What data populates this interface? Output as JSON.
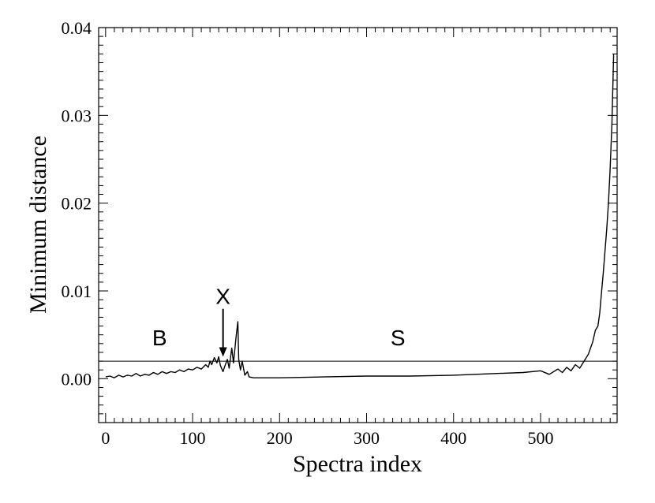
{
  "chart_data": {
    "type": "line",
    "title": "",
    "xlabel": "Spectra index",
    "ylabel": "Minimum distance",
    "xlim": [
      -8,
      588
    ],
    "ylim": [
      -0.005,
      0.04
    ],
    "xticks": [
      0,
      100,
      200,
      300,
      400,
      500
    ],
    "xtick_labels": [
      "0",
      "100",
      "200",
      "300",
      "400",
      "500"
    ],
    "yticks": [
      0.0,
      0.01,
      0.02,
      0.03,
      0.04
    ],
    "ytick_labels": [
      "0.00",
      "0.01",
      "0.02",
      "0.03",
      "0.04"
    ],
    "grid": false,
    "legend": "none",
    "series": [
      {
        "x": [
          0,
          5,
          10,
          15,
          20,
          25,
          30,
          35,
          40,
          45,
          50,
          55,
          60,
          65,
          70,
          75,
          80,
          85,
          90,
          95,
          100,
          105,
          110,
          115,
          118,
          120,
          122,
          125,
          128,
          130,
          132,
          135,
          137,
          140,
          142,
          145,
          147,
          150,
          152,
          153,
          155,
          157,
          160,
          163,
          165,
          170,
          180,
          200,
          250,
          300,
          350,
          400,
          450,
          480,
          500,
          510,
          520,
          525,
          530,
          535,
          540,
          545,
          550,
          555,
          560,
          563,
          566,
          568,
          570,
          572,
          574,
          576,
          578,
          580,
          582,
          583,
          584
        ],
        "y": [
          0.0002,
          0.0003,
          0.0001,
          0.0004,
          0.0002,
          0.0004,
          0.0003,
          0.0006,
          0.0003,
          0.0005,
          0.0004,
          0.0007,
          0.0005,
          0.0008,
          0.0006,
          0.0008,
          0.0007,
          0.001,
          0.0008,
          0.0011,
          0.001,
          0.0013,
          0.0011,
          0.0016,
          0.0013,
          0.002,
          0.0016,
          0.0024,
          0.0018,
          0.0025,
          0.0015,
          0.0008,
          0.0014,
          0.0022,
          0.0012,
          0.0035,
          0.0018,
          0.0048,
          0.0065,
          0.0022,
          0.001,
          0.002,
          0.0004,
          0.0008,
          0.0002,
          0.0001,
          0.0001,
          0.0001,
          0.0002,
          0.0003,
          0.0003,
          0.0004,
          0.0006,
          0.0007,
          0.0009,
          0.0005,
          0.0011,
          0.0007,
          0.0013,
          0.0009,
          0.0016,
          0.0012,
          0.002,
          0.0028,
          0.0042,
          0.0055,
          0.006,
          0.0075,
          0.0098,
          0.012,
          0.0145,
          0.017,
          0.02,
          0.024,
          0.029,
          0.033,
          0.037
        ]
      }
    ],
    "hlines": [
      0.002
    ],
    "annotations": [
      {
        "text": "B",
        "x": 62,
        "y": 0.0038
      },
      {
        "text": "X",
        "x": 135,
        "y": 0.0085,
        "arrow_to": [
          135,
          0.0025
        ]
      },
      {
        "text": "S",
        "x": 336,
        "y": 0.0038
      }
    ]
  }
}
